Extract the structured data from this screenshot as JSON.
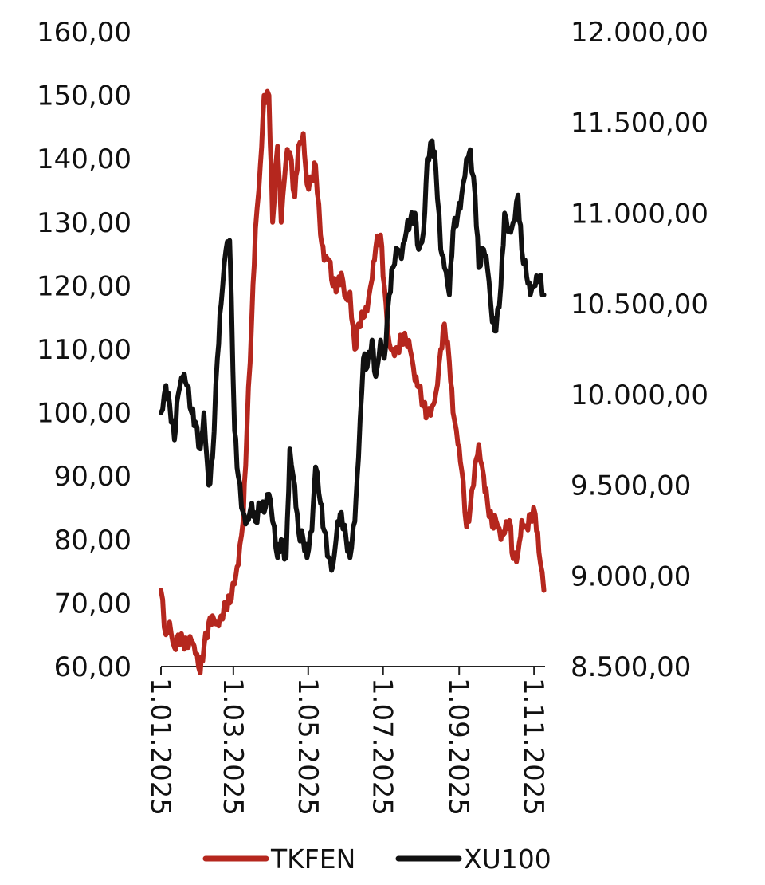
{
  "chart_data": {
    "type": "line",
    "title": "",
    "x_axis": {
      "type": "date",
      "range": [
        "2025-01-01",
        "2025-11-10"
      ],
      "tick_labels": [
        "1.01.2025",
        "1.03.2025",
        "1.05.2025",
        "1.07.2025",
        "1.09.2025",
        "1.11.2025"
      ],
      "tick_dates": [
        "2025-01-01",
        "2025-03-01",
        "2025-05-01",
        "2025-07-01",
        "2025-09-01",
        "2025-11-01"
      ],
      "label_rotation": "vertical"
    },
    "y_left": {
      "range": [
        60,
        160
      ],
      "tick_labels": [
        "160,00",
        "150,00",
        "140,00",
        "130,00",
        "120,00",
        "110,00",
        "100,00",
        "90,00",
        "80,00",
        "70,00",
        "60,00"
      ],
      "tick_values": [
        160,
        150,
        140,
        130,
        120,
        110,
        100,
        90,
        80,
        70,
        60
      ]
    },
    "y_right": {
      "range": [
        8500,
        12000
      ],
      "tick_labels": [
        "12.000,00",
        "11.500,00",
        "11.000,00",
        "10.500,00",
        "10.000,00",
        "9.500,00",
        "9.000,00",
        "8.500,00"
      ],
      "tick_values": [
        12000,
        11500,
        11000,
        10500,
        10000,
        9500,
        9000,
        8500
      ]
    },
    "grid": false,
    "legend": {
      "placement": "bottom-center"
    },
    "series": [
      {
        "name": "TKFEN",
        "axis": "left",
        "color": "#b5271e",
        "x": [
          "2025-01-01",
          "2025-01-05",
          "2025-01-08",
          "2025-01-12",
          "2025-01-15",
          "2025-01-19",
          "2025-01-22",
          "2025-01-26",
          "2025-01-29",
          "2025-02-02",
          "2025-02-05",
          "2025-02-09",
          "2025-02-12",
          "2025-02-16",
          "2025-02-19",
          "2025-02-23",
          "2025-02-26",
          "2025-03-02",
          "2025-03-05",
          "2025-03-09",
          "2025-03-12",
          "2025-03-16",
          "2025-03-19",
          "2025-03-23",
          "2025-03-26",
          "2025-03-30",
          "2025-04-02",
          "2025-04-06",
          "2025-04-09",
          "2025-04-13",
          "2025-04-16",
          "2025-04-20",
          "2025-04-23",
          "2025-04-27",
          "2025-04-30",
          "2025-05-04",
          "2025-05-07",
          "2025-05-11",
          "2025-05-14",
          "2025-05-18",
          "2025-05-21",
          "2025-05-25",
          "2025-05-28",
          "2025-06-01",
          "2025-06-04",
          "2025-06-08",
          "2025-06-11",
          "2025-06-15",
          "2025-06-18",
          "2025-06-22",
          "2025-06-25",
          "2025-06-29",
          "2025-07-02",
          "2025-07-06",
          "2025-07-09",
          "2025-07-13",
          "2025-07-16",
          "2025-07-20",
          "2025-07-23",
          "2025-07-27",
          "2025-07-30",
          "2025-08-03",
          "2025-08-06",
          "2025-08-10",
          "2025-08-13",
          "2025-08-17",
          "2025-08-20",
          "2025-08-24",
          "2025-08-27",
          "2025-08-31",
          "2025-09-03",
          "2025-09-07",
          "2025-09-10",
          "2025-09-14",
          "2025-09-17",
          "2025-09-21",
          "2025-09-24",
          "2025-09-28",
          "2025-10-01",
          "2025-10-05",
          "2025-10-08",
          "2025-10-12",
          "2025-10-15",
          "2025-10-19",
          "2025-10-22",
          "2025-10-26",
          "2025-10-29",
          "2025-11-02",
          "2025-11-05",
          "2025-11-09"
        ],
        "values": [
          72,
          65,
          67,
          63,
          65,
          64,
          63,
          64,
          62,
          59,
          63,
          67,
          68,
          67,
          68,
          70,
          70,
          73,
          76,
          83,
          97,
          115,
          129,
          139,
          150,
          150,
          130,
          142,
          130,
          140,
          141,
          134,
          142,
          144,
          136,
          137,
          139,
          128,
          124,
          124,
          120,
          120,
          122,
          118,
          119,
          110,
          114,
          115,
          116,
          121,
          126,
          128,
          120,
          111,
          110,
          110,
          112,
          111,
          110,
          105,
          104,
          101,
          100,
          101,
          103,
          110,
          114,
          108,
          100,
          95,
          91,
          82,
          85,
          92,
          95,
          90,
          86,
          82,
          83,
          80,
          81,
          83,
          77,
          78,
          83,
          82,
          84,
          84,
          78,
          72
        ]
      },
      {
        "name": "XU100",
        "axis": "right",
        "color": "#111111",
        "x": [
          "2025-01-01",
          "2025-01-05",
          "2025-01-08",
          "2025-01-12",
          "2025-01-15",
          "2025-01-19",
          "2025-01-22",
          "2025-01-26",
          "2025-01-29",
          "2025-02-02",
          "2025-02-05",
          "2025-02-09",
          "2025-02-12",
          "2025-02-16",
          "2025-02-19",
          "2025-02-23",
          "2025-02-26",
          "2025-03-02",
          "2025-03-05",
          "2025-03-09",
          "2025-03-12",
          "2025-03-16",
          "2025-03-19",
          "2025-03-23",
          "2025-03-26",
          "2025-03-30",
          "2025-04-02",
          "2025-04-06",
          "2025-04-09",
          "2025-04-13",
          "2025-04-16",
          "2025-04-20",
          "2025-04-23",
          "2025-04-27",
          "2025-04-30",
          "2025-05-04",
          "2025-05-07",
          "2025-05-11",
          "2025-05-14",
          "2025-05-18",
          "2025-05-21",
          "2025-05-25",
          "2025-05-28",
          "2025-06-01",
          "2025-06-04",
          "2025-06-08",
          "2025-06-11",
          "2025-06-15",
          "2025-06-18",
          "2025-06-22",
          "2025-06-25",
          "2025-06-29",
          "2025-07-02",
          "2025-07-06",
          "2025-07-09",
          "2025-07-13",
          "2025-07-16",
          "2025-07-20",
          "2025-07-23",
          "2025-07-27",
          "2025-07-30",
          "2025-08-03",
          "2025-08-06",
          "2025-08-10",
          "2025-08-13",
          "2025-08-17",
          "2025-08-20",
          "2025-08-24",
          "2025-08-27",
          "2025-08-31",
          "2025-09-03",
          "2025-09-07",
          "2025-09-10",
          "2025-09-14",
          "2025-09-17",
          "2025-09-21",
          "2025-09-24",
          "2025-09-28",
          "2025-10-01",
          "2025-10-05",
          "2025-10-08",
          "2025-10-12",
          "2025-10-15",
          "2025-10-19",
          "2025-10-22",
          "2025-10-26",
          "2025-10-29",
          "2025-11-02",
          "2025-11-05",
          "2025-11-09"
        ],
        "values": [
          9900,
          10050,
          9950,
          9750,
          10000,
          10100,
          10050,
          9900,
          9850,
          9700,
          9900,
          9500,
          9650,
          10200,
          10500,
          10800,
          10850,
          9800,
          9550,
          9350,
          9300,
          9400,
          9300,
          9400,
          9350,
          9450,
          9300,
          9100,
          9200,
          9100,
          9700,
          9500,
          9250,
          9200,
          9100,
          9250,
          9600,
          9400,
          9250,
          9100,
          9050,
          9300,
          9350,
          9200,
          9100,
          9300,
          9650,
          10200,
          10150,
          10300,
          10100,
          10300,
          10200,
          10550,
          10700,
          10800,
          10750,
          10900,
          10950,
          11000,
          10800,
          10900,
          11300,
          11400,
          11250,
          10800,
          10700,
          10550,
          10900,
          11000,
          11100,
          11300,
          11350,
          11100,
          10700,
          10800,
          10700,
          10400,
          10350,
          10600,
          11000,
          10900,
          10950,
          11100,
          10800,
          10650,
          10550,
          10600,
          10650,
          10550
        ]
      }
    ]
  }
}
